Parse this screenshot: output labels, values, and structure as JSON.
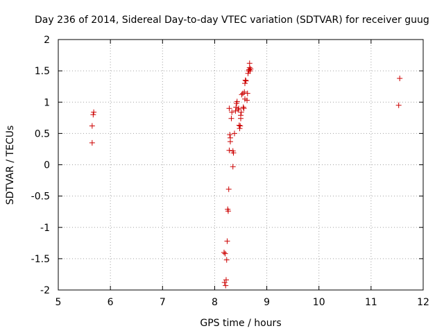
{
  "chart_data": {
    "type": "scatter",
    "title": "Day 236 of 2014, Sidereal Day-to-day VTEC variation (SDTVAR) for receiver guug",
    "xlabel": "GPS time / hours",
    "ylabel": "SDTVAR / TECUs",
    "xlim": [
      5,
      12
    ],
    "ylim": [
      -2,
      2
    ],
    "grid": true,
    "marker": "+",
    "color": "#cc0000",
    "xticks": [
      "5",
      "6",
      "7",
      "8",
      "9",
      "10",
      "11",
      "12"
    ],
    "yticks": [
      "2",
      "1.5",
      "1",
      "0.5",
      "0",
      "-0.5",
      "-1",
      "-1.5",
      "-2"
    ],
    "series": [
      {
        "name": "SDTVAR",
        "points": [
          [
            5.65,
            0.35
          ],
          [
            5.65,
            0.62
          ],
          [
            5.67,
            0.8
          ],
          [
            5.68,
            0.84
          ],
          [
            8.18,
            -1.4
          ],
          [
            8.2,
            -1.42
          ],
          [
            8.19,
            -1.88
          ],
          [
            8.21,
            -1.93
          ],
          [
            8.22,
            -1.84
          ],
          [
            8.23,
            -1.52
          ],
          [
            8.24,
            -1.22
          ],
          [
            8.25,
            -0.71
          ],
          [
            8.26,
            -0.74
          ],
          [
            8.27,
            -0.39
          ],
          [
            8.28,
            0.23
          ],
          [
            8.28,
            0.9
          ],
          [
            8.29,
            0.48
          ],
          [
            8.3,
            0.43
          ],
          [
            8.3,
            0.37
          ],
          [
            8.32,
            0.74
          ],
          [
            8.33,
            0.84
          ],
          [
            8.35,
            0.22
          ],
          [
            8.36,
            0.19
          ],
          [
            8.35,
            -0.03
          ],
          [
            8.38,
            0.5
          ],
          [
            8.4,
            0.86
          ],
          [
            8.41,
            0.92
          ],
          [
            8.42,
            0.98
          ],
          [
            8.43,
            1.01
          ],
          [
            8.45,
            0.88
          ],
          [
            8.46,
            0.9
          ],
          [
            8.47,
            0.63
          ],
          [
            8.48,
            0.58
          ],
          [
            8.49,
            0.62
          ],
          [
            8.5,
            0.74
          ],
          [
            8.5,
            0.79
          ],
          [
            8.51,
            0.84
          ],
          [
            8.52,
            1.12
          ],
          [
            8.54,
            1.14
          ],
          [
            8.55,
            0.92
          ],
          [
            8.56,
            0.9
          ],
          [
            8.57,
            1.16
          ],
          [
            8.58,
            1.05
          ],
          [
            8.58,
            1.3
          ],
          [
            8.59,
            1.35
          ],
          [
            8.6,
            1.34
          ],
          [
            8.62,
            1.03
          ],
          [
            8.63,
            1.14
          ],
          [
            8.64,
            1.46
          ],
          [
            8.65,
            1.5
          ],
          [
            8.66,
            1.52
          ],
          [
            8.67,
            1.55
          ],
          [
            8.67,
            1.62
          ],
          [
            8.68,
            1.5
          ],
          [
            8.69,
            1.53
          ],
          [
            11.53,
            0.95
          ],
          [
            11.55,
            1.38
          ]
        ]
      }
    ]
  }
}
